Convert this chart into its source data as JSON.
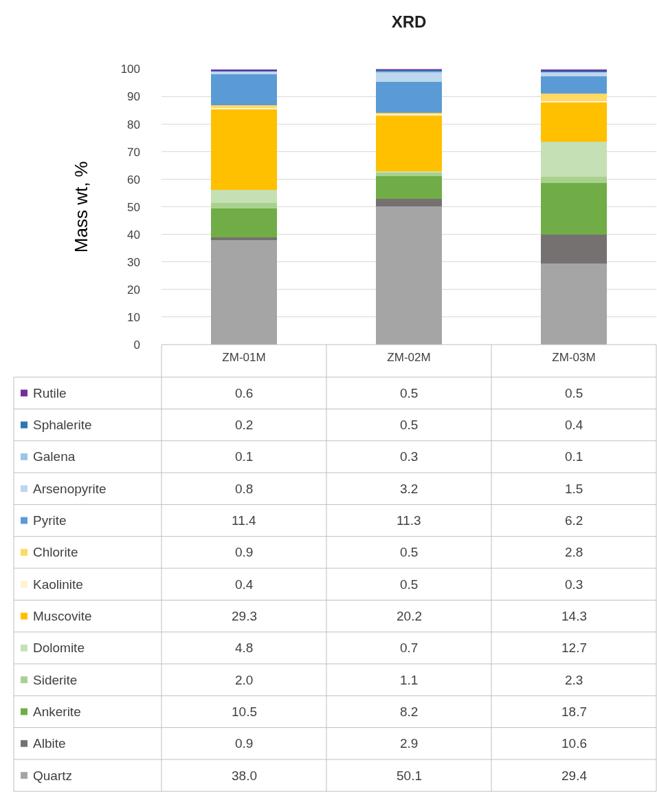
{
  "chart_data": {
    "type": "bar",
    "title": "XRD",
    "ylabel": "Mass wt, %",
    "stacked": true,
    "grid": "y",
    "legend": "bottom left",
    "categories": [
      "ZM-01M",
      "ZM-02M",
      "ZM-03M"
    ],
    "ylim": [
      0,
      100
    ],
    "yticks": [
      0,
      10,
      20,
      30,
      40,
      50,
      60,
      70,
      80,
      90,
      100
    ],
    "series": [
      {
        "name": "Quartz",
        "color": "#a5a5a5",
        "values": [
          38.0,
          50.1,
          29.4
        ],
        "value_labels": [
          "38.0",
          "50.1",
          "29.4"
        ]
      },
      {
        "name": "Albite",
        "color": "#767171",
        "values": [
          0.9,
          2.9,
          10.6
        ],
        "value_labels": [
          "0.9",
          "2.9",
          "10.6"
        ]
      },
      {
        "name": "Ankerite",
        "color": "#70ad47",
        "values": [
          10.5,
          8.2,
          18.7
        ],
        "value_labels": [
          "10.5",
          "8.2",
          "18.7"
        ]
      },
      {
        "name": "Siderite",
        "color": "#a9d18e",
        "values": [
          2.0,
          1.1,
          2.3
        ],
        "value_labels": [
          "2.0",
          "1.1",
          "2.3"
        ]
      },
      {
        "name": "Dolomite",
        "color": "#c5e0b4",
        "values": [
          4.8,
          0.7,
          12.7
        ],
        "value_labels": [
          "4.8",
          "0.7",
          "12.7"
        ]
      },
      {
        "name": "Muscovite",
        "color": "#ffc000",
        "values": [
          29.3,
          20.2,
          14.3
        ],
        "value_labels": [
          "29.3",
          "20.2",
          "14.3"
        ]
      },
      {
        "name": "Kaolinite",
        "color": "#fff2cc",
        "values": [
          0.4,
          0.5,
          0.3
        ],
        "value_labels": [
          "0.4",
          "0.5",
          "0.3"
        ]
      },
      {
        "name": "Chlorite",
        "color": "#ffd966",
        "values": [
          0.9,
          0.5,
          2.8
        ],
        "value_labels": [
          "0.9",
          "0.5",
          "2.8"
        ]
      },
      {
        "name": "Pyrite",
        "color": "#5b9bd5",
        "values": [
          11.4,
          11.3,
          6.2
        ],
        "value_labels": [
          "11.4",
          "11.3",
          "6.2"
        ]
      },
      {
        "name": "Arsenopyrite",
        "color": "#bdd7ee",
        "values": [
          0.8,
          3.2,
          1.5
        ],
        "value_labels": [
          "0.8",
          "3.2",
          "1.5"
        ]
      },
      {
        "name": "Galena",
        "color": "#9dc3e6",
        "values": [
          0.1,
          0.3,
          0.1
        ],
        "value_labels": [
          "0.1",
          "0.3",
          "0.1"
        ]
      },
      {
        "name": "Sphalerite",
        "color": "#2e75b6",
        "values": [
          0.2,
          0.5,
          0.4
        ],
        "value_labels": [
          "0.2",
          "0.5",
          "0.4"
        ]
      },
      {
        "name": "Rutile",
        "color": "#7030a0",
        "values": [
          0.6,
          0.5,
          0.5
        ],
        "value_labels": [
          "0.6",
          "0.5",
          "0.5"
        ]
      }
    ]
  }
}
